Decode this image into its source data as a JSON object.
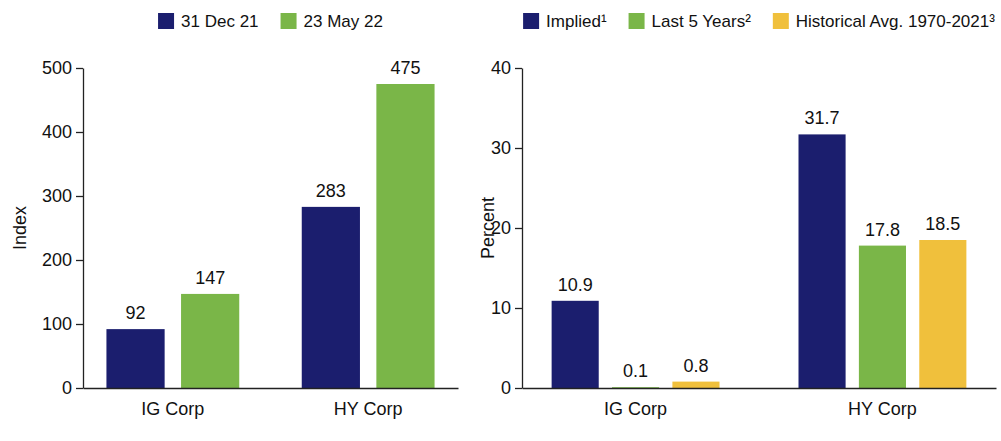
{
  "chart_data": [
    {
      "type": "bar",
      "y_label": "Index",
      "categories": [
        "IG Corp",
        "HY Corp"
      ],
      "series": [
        {
          "name": "31 Dec 21",
          "color": "#1b1e6e",
          "values": [
            92,
            283
          ]
        },
        {
          "name": "23 May 22",
          "color": "#7ab648",
          "values": [
            147,
            475
          ]
        }
      ],
      "ylim": [
        0,
        500
      ],
      "yticks": [
        0,
        100,
        200,
        300,
        400,
        500
      ],
      "data_labels": true,
      "legend": "top"
    },
    {
      "type": "bar",
      "y_label": "Percent",
      "categories": [
        "IG Corp",
        "HY Corp"
      ],
      "series": [
        {
          "name": "Implied¹",
          "color": "#1b1e6e",
          "values": [
            10.9,
            31.7
          ]
        },
        {
          "name": "Last 5 Years²",
          "color": "#7ab648",
          "values": [
            0.1,
            17.8
          ]
        },
        {
          "name": "Historical Avg. 1970-2021³",
          "color": "#f0c03c",
          "values": [
            0.8,
            18.5
          ]
        }
      ],
      "ylim": [
        0,
        40
      ],
      "yticks": [
        0,
        10,
        20,
        30,
        40
      ],
      "data_labels": true,
      "legend": "top"
    }
  ]
}
